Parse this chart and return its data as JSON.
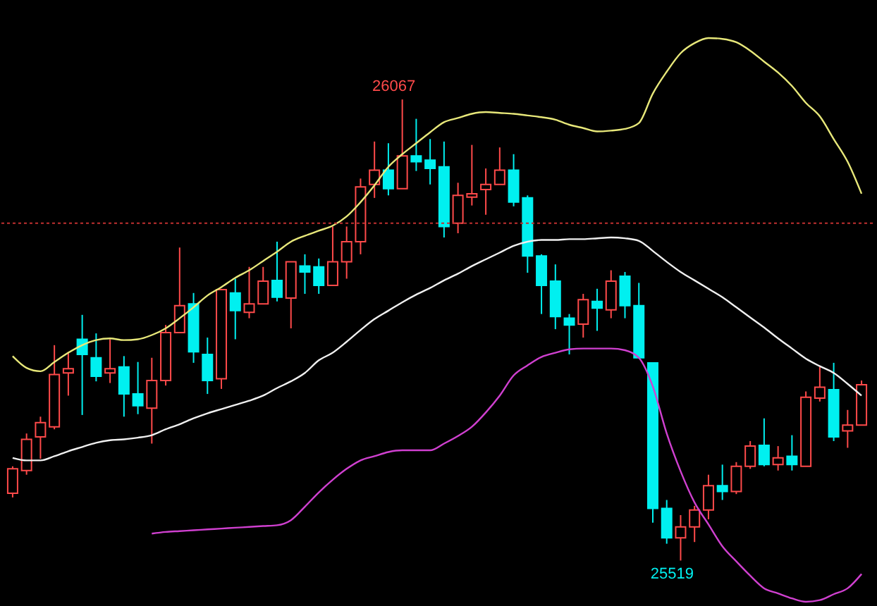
{
  "chart_data": {
    "type": "candlestick",
    "categories": [
      null,
      null,
      null,
      null,
      null,
      null,
      null,
      null,
      null,
      null,
      null,
      null,
      null,
      null,
      null,
      null,
      null,
      null,
      null,
      null,
      null,
      null,
      null,
      null,
      null,
      null,
      null,
      null,
      null,
      null,
      null,
      null,
      null,
      null,
      null,
      null,
      null,
      null,
      null,
      null,
      null,
      null,
      null,
      null,
      null,
      null,
      null,
      null,
      null,
      null,
      null,
      null,
      null,
      null,
      null,
      null,
      null,
      null,
      null,
      null,
      null,
      null
    ],
    "ohlc": [
      [
        25599,
        25631,
        25594,
        25628
      ],
      [
        25626,
        25670,
        25621,
        25663
      ],
      [
        25666,
        25690,
        25640,
        25683
      ],
      [
        25678,
        25775,
        25675,
        25740
      ],
      [
        25742,
        25767,
        25715,
        25747
      ],
      [
        25782,
        25811,
        25692,
        25764
      ],
      [
        25760,
        25789,
        25732,
        25738
      ],
      [
        25742,
        25782,
        25730,
        25747
      ],
      [
        25749,
        25762,
        25690,
        25717
      ],
      [
        25717,
        25755,
        25693,
        25703
      ],
      [
        25700,
        25760,
        25658,
        25733
      ],
      [
        25733,
        25799,
        25727,
        25790
      ],
      [
        25790,
        25891,
        25790,
        25822
      ],
      [
        25824,
        25837,
        25754,
        25767
      ],
      [
        25764,
        25784,
        25717,
        25733
      ],
      [
        25735,
        25841,
        25723,
        25841
      ],
      [
        25837,
        25854,
        25782,
        25816
      ],
      [
        25814,
        25868,
        25807,
        25824
      ],
      [
        25824,
        25868,
        25824,
        25851
      ],
      [
        25852,
        25898,
        25827,
        25832
      ],
      [
        25831,
        25874,
        25795,
        25874
      ],
      [
        25869,
        25883,
        25836,
        25862
      ],
      [
        25868,
        25878,
        25836,
        25846
      ],
      [
        25846,
        25916,
        25846,
        25874
      ],
      [
        25874,
        25916,
        25854,
        25898
      ],
      [
        25898,
        25973,
        25883,
        25963
      ],
      [
        25966,
        26017,
        25950,
        25983
      ],
      [
        25983,
        26015,
        25953,
        25961
      ],
      [
        25961,
        26067,
        25961,
        26000
      ],
      [
        26000,
        26044,
        25982,
        25993
      ],
      [
        25995,
        26020,
        25966,
        25985
      ],
      [
        25987,
        26017,
        25903,
        25916
      ],
      [
        25920,
        25968,
        25908,
        25953
      ],
      [
        25951,
        26013,
        25941,
        25955
      ],
      [
        25960,
        25985,
        25930,
        25966
      ],
      [
        25966,
        26010,
        25966,
        25983
      ],
      [
        25983,
        26002,
        25940,
        25945
      ],
      [
        25950,
        25953,
        25861,
        25881
      ],
      [
        25881,
        25883,
        25812,
        25846
      ],
      [
        25851,
        25871,
        25794,
        25809
      ],
      [
        25807,
        25812,
        25764,
        25799
      ],
      [
        25800,
        25836,
        25784,
        25829
      ],
      [
        25827,
        25842,
        25792,
        25819
      ],
      [
        25817,
        25864,
        25807,
        25851
      ],
      [
        25857,
        25862,
        25807,
        25822
      ],
      [
        25822,
        25849,
        25760,
        25760
      ],
      [
        25754,
        25754,
        25564,
        25581
      ],
      [
        25581,
        25591,
        25539,
        25546
      ],
      [
        25546,
        25573,
        25519,
        25559
      ],
      [
        25559,
        25584,
        25541,
        25579
      ],
      [
        25579,
        25621,
        25568,
        25608
      ],
      [
        25608,
        25633,
        25591,
        25601
      ],
      [
        25601,
        25636,
        25598,
        25631
      ],
      [
        25631,
        25661,
        25628,
        25655
      ],
      [
        25656,
        25688,
        25631,
        25633
      ],
      [
        25633,
        25655,
        25626,
        25641
      ],
      [
        25643,
        25668,
        25626,
        25633
      ],
      [
        25631,
        25720,
        25631,
        25713
      ],
      [
        25712,
        25749,
        25708,
        25725
      ],
      [
        25722,
        25754,
        25661,
        25666
      ],
      [
        25673,
        25698,
        25653,
        25680
      ],
      [
        25680,
        25733,
        25680,
        25728
      ]
    ],
    "series": [
      {
        "type": "line",
        "color": "#e8e87a",
        "values": [
          25762,
          25748,
          25744,
          25755,
          25766,
          25775,
          25781,
          25783,
          25781,
          25782,
          25787,
          25795,
          25807,
          25820,
          25834,
          25844,
          25855,
          25864,
          25875,
          25886,
          25898,
          25905,
          25911,
          25917,
          25928,
          25945,
          25965,
          25987,
          26002,
          26015,
          26028,
          26040,
          26045,
          26050,
          26052,
          26051,
          26050,
          26048,
          26046,
          26043,
          26037,
          26033,
          26029,
          26030,
          26032,
          26039,
          26074,
          26100,
          26122,
          26134,
          26140,
          26139,
          26135,
          26125,
          26112,
          26099,
          26083,
          26063,
          26047,
          26020,
          25993,
          25955
        ]
      },
      {
        "type": "line",
        "color": "#f0f0f0",
        "values": [
          25641,
          25638,
          25638,
          25643,
          25649,
          25654,
          25659,
          25662,
          25663,
          25665,
          25668,
          25675,
          25681,
          25688,
          25694,
          25699,
          25704,
          25709,
          25715,
          25724,
          25732,
          25742,
          25757,
          25766,
          25779,
          25793,
          25806,
          25816,
          25826,
          25835,
          25843,
          25852,
          25860,
          25869,
          25877,
          25885,
          25893,
          25898,
          25900,
          25900,
          25901,
          25901,
          25902,
          25903,
          25902,
          25899,
          25887,
          25874,
          25862,
          25852,
          25842,
          25832,
          25820,
          25808,
          25796,
          25783,
          25771,
          25759,
          25750,
          25742,
          25729,
          25715
        ]
      },
      {
        "type": "line",
        "color": "#d040d0",
        "values": [
          null,
          null,
          null,
          null,
          null,
          null,
          null,
          null,
          null,
          null,
          25551,
          25553,
          25554,
          25555,
          25556,
          25557,
          25558,
          25559,
          25560,
          25561,
          25567,
          25583,
          25600,
          25615,
          25628,
          25638,
          25643,
          25648,
          25650,
          25650,
          25650,
          25658,
          25667,
          25678,
          25695,
          25715,
          25739,
          25751,
          25761,
          25766,
          25770,
          25771,
          25771,
          25771,
          25769,
          25760,
          25726,
          25670,
          25625,
          25588,
          25562,
          25536,
          25518,
          25501,
          25486,
          25480,
          25474,
          25470,
          25472,
          25479,
          25486,
          25503
        ]
      }
    ],
    "ref_lines": [
      {
        "axis": "y",
        "value": 25920,
        "color": "#c03030",
        "line_style": "dotted"
      }
    ],
    "annotations": [
      "26067",
      "25519"
    ],
    "tick_labels": false
  }
}
